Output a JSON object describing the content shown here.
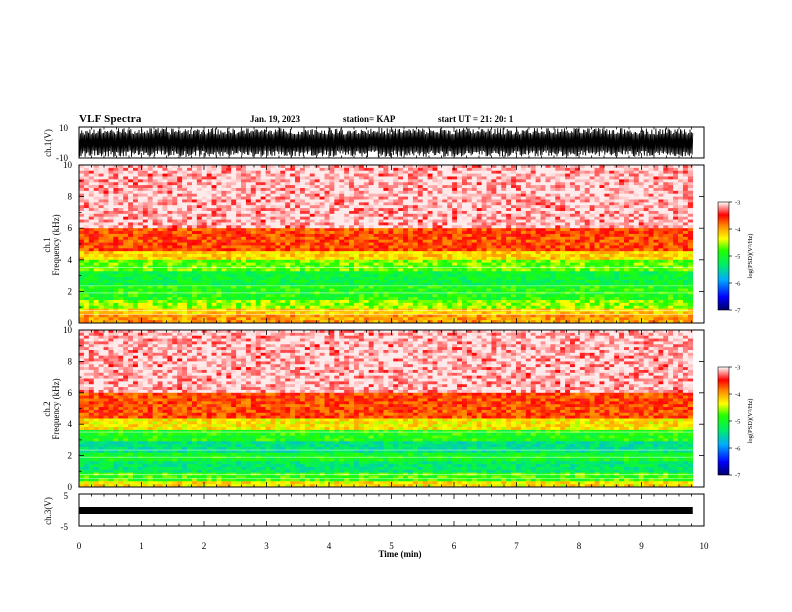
{
  "header": {
    "title": "VLF Spectra",
    "date": "Jan. 19, 2023",
    "station": "station= KAP",
    "start_ut": "start  UT =   21: 20: 1"
  },
  "colors": {
    "red": "#ff0000",
    "orange": "#ff8c00",
    "yellow": "#ffee00",
    "green": "#00ee44",
    "blue": "#0000cc"
  },
  "chart_data": [
    {
      "type": "line",
      "name": "ch1-waveform",
      "ylabel": "ch.1(V)",
      "ylim": [
        -10,
        10
      ],
      "y_ticks": [
        "10",
        "-10"
      ],
      "xlim": [
        0,
        10
      ],
      "description_level": "dense oscillation between -10 and 10"
    },
    {
      "type": "heatmap",
      "name": "ch1-spectrogram",
      "ylabel_channel": "ch.1",
      "ylabel": "Frequency (kHz)",
      "ylim": [
        0,
        10
      ],
      "y_ticks": [
        "0",
        "2",
        "4",
        "6",
        "8",
        "10"
      ],
      "xlim": [
        0,
        10
      ],
      "bands_khz": [
        {
          "from": 0.0,
          "to": 0.5,
          "level": -4.0
        },
        {
          "from": 0.5,
          "to": 0.9,
          "level": -4.2
        },
        {
          "from": 0.9,
          "to": 1.5,
          "level": -4.6
        },
        {
          "from": 1.5,
          "to": 2.3,
          "level": -4.9
        },
        {
          "from": 2.3,
          "to": 3.3,
          "level": -5.1
        },
        {
          "from": 3.3,
          "to": 4.0,
          "level": -4.7
        },
        {
          "from": 4.0,
          "to": 4.6,
          "level": -4.2
        },
        {
          "from": 4.6,
          "to": 6.0,
          "level": -3.7
        },
        {
          "from": 6.0,
          "to": 10.0,
          "level": -3.2
        }
      ],
      "colorbar": {
        "label": "log(PSD)(V²/Hz)",
        "range": [
          -7,
          -3
        ],
        "ticks": [
          "-3",
          "-4",
          "-5",
          "-6",
          "-7"
        ]
      }
    },
    {
      "type": "heatmap",
      "name": "ch2-spectrogram",
      "ylabel_channel": "ch.2",
      "ylabel": "Frequency (kHz)",
      "ylim": [
        0,
        10
      ],
      "y_ticks": [
        "0",
        "2",
        "4",
        "6",
        "8",
        "10"
      ],
      "xlim": [
        0,
        10
      ],
      "bands_khz": [
        {
          "from": 0.0,
          "to": 0.4,
          "level": -4.3
        },
        {
          "from": 0.4,
          "to": 1.0,
          "level": -4.8
        },
        {
          "from": 1.0,
          "to": 1.6,
          "level": -5.3
        },
        {
          "from": 1.6,
          "to": 2.1,
          "level": -5.0
        },
        {
          "from": 2.1,
          "to": 3.0,
          "level": -5.4
        },
        {
          "from": 3.0,
          "to": 3.6,
          "level": -4.9
        },
        {
          "from": 3.6,
          "to": 4.4,
          "level": -4.3
        },
        {
          "from": 4.4,
          "to": 6.0,
          "level": -3.7
        },
        {
          "from": 6.0,
          "to": 10.0,
          "level": -3.2
        }
      ],
      "colorbar": {
        "label": "log(PSD)(V²/Hz)",
        "range": [
          -7,
          -3
        ],
        "ticks": [
          "-3",
          "-4",
          "-5",
          "-6",
          "-7"
        ]
      }
    },
    {
      "type": "line",
      "name": "ch3-waveform",
      "ylabel": "ch.3(V)",
      "ylim": [
        -5,
        5
      ],
      "y_ticks": [
        "5",
        "-5"
      ],
      "xlim": [
        0,
        10
      ],
      "level_band": [
        -0.5,
        0.5
      ]
    }
  ],
  "x_axis": {
    "label": "Time (min)",
    "ticks": [
      "0",
      "1",
      "2",
      "3",
      "4",
      "5",
      "6",
      "7",
      "8",
      "9",
      "10"
    ],
    "data_end_min": 9.82
  }
}
